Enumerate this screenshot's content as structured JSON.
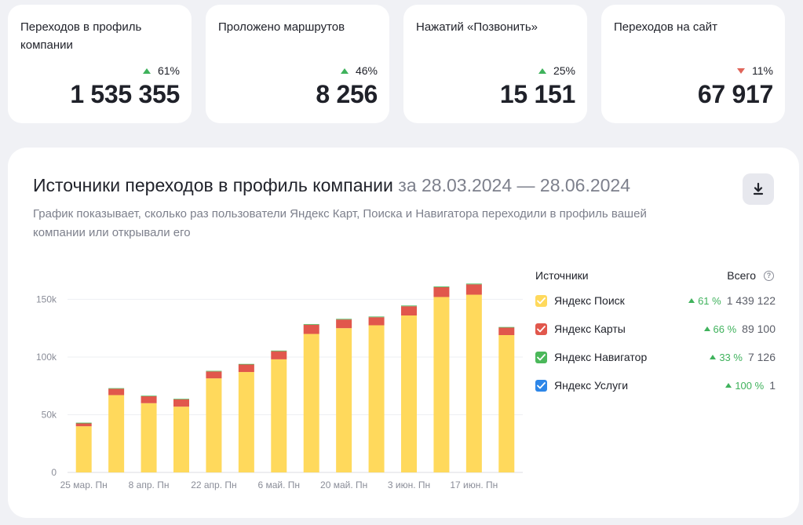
{
  "kpis": [
    {
      "title": "Переходов в профиль компании",
      "delta": "61%",
      "trend": "up",
      "value": "1 535 355"
    },
    {
      "title": "Проложено маршрутов",
      "delta": "46%",
      "trend": "up",
      "value": "8 256"
    },
    {
      "title": "Нажатий «Позвонить»",
      "delta": "25%",
      "trend": "up",
      "value": "15 151"
    },
    {
      "title": "Переходов на сайт",
      "delta": "11%",
      "trend": "down",
      "value": "67 917"
    }
  ],
  "panel": {
    "title": "Источники переходов в профиль компании",
    "period": "за 28.03.2024 — 28.06.2024",
    "description": "График показывает, сколько раз пользователи Яндекс Карт, Поиска и Навигатора переходили в профиль вашей компании или открывали его",
    "download_icon": "download-icon"
  },
  "legend": {
    "header_sources": "Источники",
    "header_total": "Всего",
    "help_icon": "question-circle-icon",
    "items": [
      {
        "name": "Яндекс Поиск",
        "pct": "61 %",
        "total": "1 439 122",
        "color": "#ffd95c",
        "checked": true
      },
      {
        "name": "Яндекс Карты",
        "pct": "66 %",
        "total": "89 100",
        "color": "#e1574c",
        "checked": true
      },
      {
        "name": "Яндекс Навигатор",
        "pct": "33 %",
        "total": "7 126",
        "color": "#4bb85a",
        "checked": true
      },
      {
        "name": "Яндекс Услуги",
        "pct": "100 %",
        "total": "1",
        "color": "#2d86e8",
        "checked": true
      }
    ]
  },
  "chart_data": {
    "type": "bar",
    "stacked": true,
    "yticks": [
      "0",
      "50k",
      "100k",
      "150k"
    ],
    "ytick_values": [
      0,
      50000,
      100000,
      150000
    ],
    "ylim": [
      0,
      170000
    ],
    "xtick_labels": [
      "25 мар. Пн",
      "8 апр. Пн",
      "22 апр. Пн",
      "6 май. Пн",
      "20 май. Пн",
      "3 июн. Пн",
      "17 июн. Пн"
    ],
    "grid": true,
    "series": [
      {
        "name": "Яндекс Поиск",
        "color": "#ffd95c",
        "values": [
          40000,
          67000,
          60000,
          57000,
          81500,
          87000,
          98000,
          120000,
          125000,
          127500,
          136000,
          152000,
          154000,
          119000
        ]
      },
      {
        "name": "Яндекс Карты",
        "color": "#e1574c",
        "values": [
          2500,
          5500,
          6000,
          6300,
          6000,
          6500,
          7000,
          8000,
          7500,
          7000,
          8000,
          8500,
          9000,
          6500
        ]
      },
      {
        "name": "Яндекс Навигатор",
        "color": "#4bb85a",
        "values": [
          600,
          500,
          500,
          500,
          500,
          500,
          550,
          550,
          550,
          550,
          600,
          600,
          600,
          500
        ]
      }
    ]
  }
}
